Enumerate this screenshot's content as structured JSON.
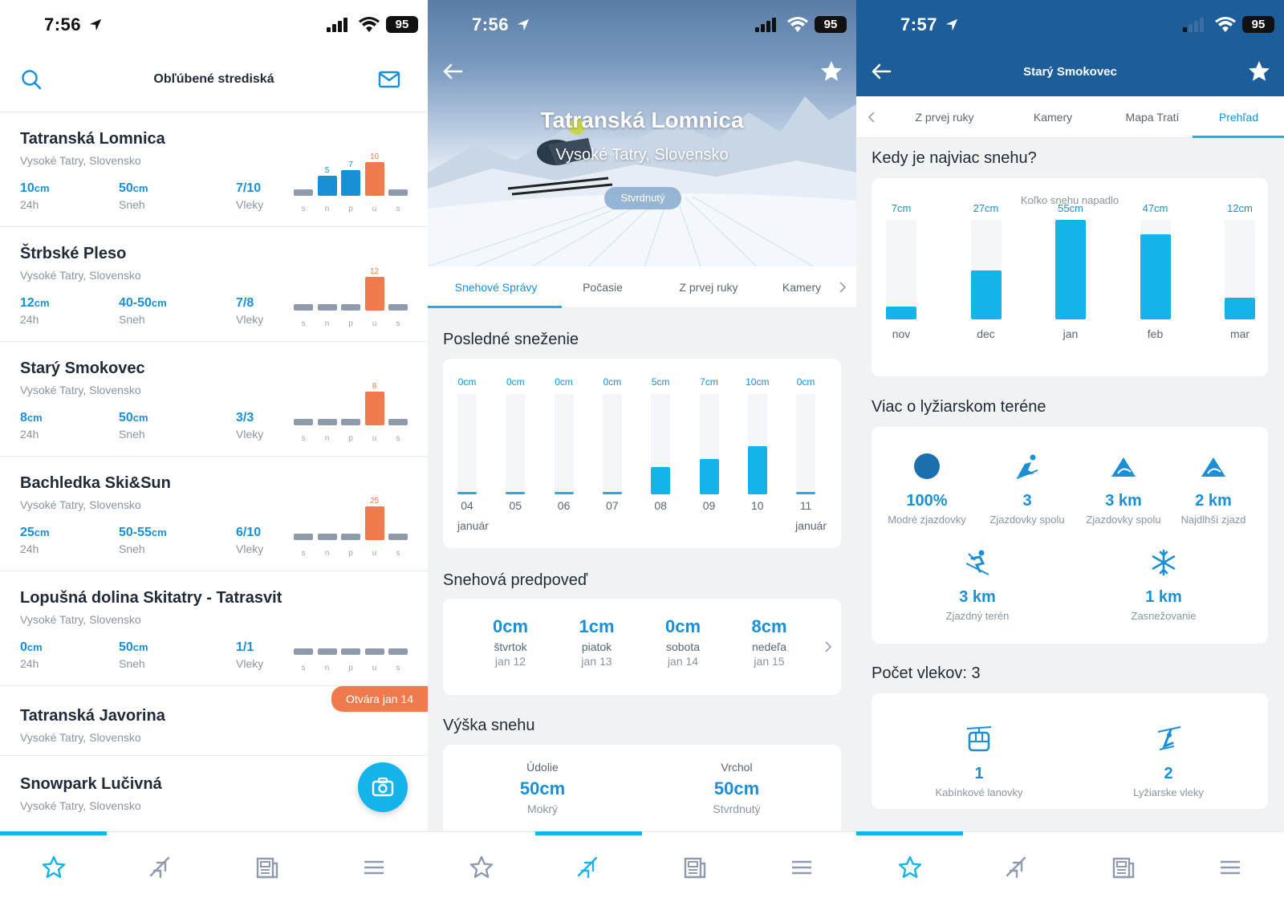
{
  "status_bar": [
    {
      "time": "7:56",
      "battery": "95"
    },
    {
      "time": "7:56",
      "battery": "95"
    },
    {
      "time": "7:57",
      "battery": "95"
    }
  ],
  "favorites": {
    "title": "Obľúbené strediská",
    "resorts": [
      {
        "name": "Tatranská Lomnica",
        "region": "Vysoké Tatry, Slovensko",
        "s24": "10",
        "s24_unit": "cm",
        "s24_label": "24h",
        "snow": "50",
        "snow_unit": "cm",
        "snow_label": "Sneh",
        "lifts": "7/10",
        "lifts_label": "Vleky",
        "days": [
          "s",
          "n",
          "p",
          "u",
          "s"
        ],
        "bars": [
          0,
          5,
          7,
          10,
          0
        ]
      },
      {
        "name": "Štrbské Pleso",
        "region": "Vysoké Tatry, Slovensko",
        "s24": "12",
        "s24_unit": "cm",
        "s24_label": "24h",
        "snow": "40-50",
        "snow_unit": "cm",
        "snow_label": "Sneh",
        "lifts": "7/8",
        "lifts_label": "Vleky",
        "days": [
          "s",
          "n",
          "p",
          "u",
          "s"
        ],
        "bars": [
          0,
          0,
          0,
          12,
          0
        ]
      },
      {
        "name": "Starý Smokovec",
        "region": "Vysoké Tatry, Slovensko",
        "s24": "8",
        "s24_unit": "cm",
        "s24_label": "24h",
        "snow": "50",
        "snow_unit": "cm",
        "snow_label": "Sneh",
        "lifts": "3/3",
        "lifts_label": "Vleky",
        "days": [
          "s",
          "n",
          "p",
          "u",
          "s"
        ],
        "bars": [
          0,
          0,
          0,
          8,
          0
        ]
      },
      {
        "name": "Bachledka Ski&Sun",
        "region": "Vysoké Tatry, Slovensko",
        "s24": "25",
        "s24_unit": "cm",
        "s24_label": "24h",
        "snow": "50-55",
        "snow_unit": "cm",
        "snow_label": "Sneh",
        "lifts": "6/10",
        "lifts_label": "Vleky",
        "days": [
          "s",
          "n",
          "p",
          "u",
          "s"
        ],
        "bars": [
          0,
          0,
          0,
          25,
          0
        ]
      },
      {
        "name": "Lopušná dolina Skitatry - Tatrasvit",
        "region": "Vysoké Tatry, Slovensko",
        "s24": "0",
        "s24_unit": "cm",
        "s24_label": "24h",
        "snow": "50",
        "snow_unit": "cm",
        "snow_label": "Sneh",
        "lifts": "1/1",
        "lifts_label": "Vleky",
        "days": [
          "s",
          "n",
          "p",
          "u",
          "s"
        ],
        "bars": [
          0,
          0,
          0,
          0,
          0
        ]
      }
    ],
    "javorina": {
      "name": "Tatranská Javorina",
      "region": "Vysoké Tatry, Slovensko",
      "badge": "Otvára jan 14"
    },
    "lucivna": {
      "name": "Snowpark Lučivná",
      "region": "Vysoké Tatry, Slovensko"
    }
  },
  "resort_detail": {
    "name": "Tatranská Lomnica",
    "region": "Vysoké Tatry, Slovensko",
    "condition": "Stvrdnutý",
    "tabs": [
      "Snehové Správy",
      "Počasie",
      "Z prvej ruky",
      "Kamery"
    ],
    "recent_title": "Posledné sneženie",
    "recent": {
      "labels": [
        "0cm",
        "0cm",
        "0cm",
        "0cm",
        "5cm",
        "7cm",
        "10cm",
        "0cm"
      ],
      "days": [
        "04",
        "05",
        "06",
        "07",
        "08",
        "09",
        "10",
        "11"
      ],
      "values": [
        0,
        0,
        0,
        0,
        5,
        7,
        10,
        0
      ],
      "month_start": "január",
      "month_end": "január"
    },
    "forecast_title": "Snehová predpoveď",
    "forecast": [
      {
        "value": "0cm",
        "day": "štvrtok",
        "date": "jan 12"
      },
      {
        "value": "1cm",
        "day": "piatok",
        "date": "jan 13"
      },
      {
        "value": "0cm",
        "day": "sobota",
        "date": "jan 14"
      },
      {
        "value": "8cm",
        "day": "nedeľa",
        "date": "jan 15"
      }
    ],
    "depth_title": "Výška snehu",
    "depth": [
      {
        "label": "Údolie",
        "value": "50cm",
        "condition": "Mokrý"
      },
      {
        "label": "Vrchol",
        "value": "50cm",
        "condition": "Stvrdnutý"
      }
    ]
  },
  "overview": {
    "title": "Starý Smokovec",
    "tabs": [
      "Z prvej ruky",
      "Kamery",
      "Mapa Tratí",
      "Prehľad"
    ],
    "most_snow_title": "Kedy je najviac snehu?",
    "most_snow_subtitle": "Koľko snehu napadlo",
    "terrain_title": "Viac o lyžiarskom teréne",
    "terrain": [
      {
        "value": "100%",
        "label": "Modré zjazdovky",
        "icon": "blue-circle-icon"
      },
      {
        "value": "3",
        "label": "Zjazdovky spolu",
        "icon": "skier-icon"
      },
      {
        "value": "3 km",
        "label": "Zjazdovky spolu",
        "icon": "slope-icon"
      },
      {
        "value": "2 km",
        "label": "Najdlhší zjazd",
        "icon": "slope-icon"
      },
      {
        "value": "3 km",
        "label": "Zjazdný terén",
        "icon": "downhill-icon"
      },
      {
        "value": "1 km",
        "label": "Zasnežovanie",
        "icon": "snowflake-icon"
      }
    ],
    "lifts_title": "Počet vlekov: 3",
    "lifts": [
      {
        "value": "1",
        "label": "Kabínkové lanovky",
        "icon": "gondola-icon"
      },
      {
        "value": "2",
        "label": "Lyžiarske vleky",
        "icon": "ski-lift-icon"
      }
    ]
  },
  "chart_data": [
    {
      "type": "bar",
      "title": "Posledné sneženie",
      "categories": [
        "04",
        "05",
        "06",
        "07",
        "08",
        "09",
        "10",
        "11"
      ],
      "values": [
        0,
        0,
        0,
        0,
        5,
        7,
        10,
        0
      ],
      "unit": "cm"
    },
    {
      "type": "bar",
      "title": "Kedy je najviac snehu?",
      "subtitle": "Koľko snehu napadlo",
      "categories": [
        "nov",
        "dec",
        "jan",
        "feb",
        "mar"
      ],
      "values": [
        7,
        27,
        55,
        47,
        12
      ],
      "labels": [
        "7cm",
        "27cm",
        "55cm",
        "47cm",
        "12cm"
      ],
      "unit": "cm"
    }
  ],
  "colors": {
    "accent": "#14b4e8",
    "text_blue": "#1a8fd6",
    "orange": "#f07a4d",
    "header_blue": "#1c5d9a"
  }
}
